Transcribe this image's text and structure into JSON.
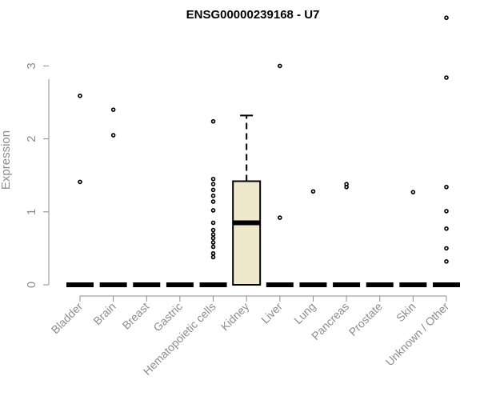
{
  "chart_data": {
    "type": "boxplot",
    "title": "ENSG00000239168 - U7",
    "xlabel": "",
    "ylabel": "Expression",
    "ylim": [
      0,
      3.75
    ],
    "yticks": [
      0,
      1,
      2,
      3
    ],
    "grid": false,
    "categories": [
      "Bladder",
      "Brain",
      "Breast",
      "Gastric",
      "Hematopoietic cells",
      "Kidney",
      "Liver",
      "Lung",
      "Pancreas",
      "Prostate",
      "Skin",
      "Unknown / Other"
    ],
    "box_fill": "#EEE8CD",
    "boxes": [
      {
        "q1": 0,
        "median": 0,
        "q3": 0,
        "whisker_low": 0,
        "whisker_high": 0,
        "outliers": [
          1.41,
          2.59
        ]
      },
      {
        "q1": 0,
        "median": 0,
        "q3": 0,
        "whisker_low": 0,
        "whisker_high": 0,
        "outliers": [
          2.05,
          2.4
        ]
      },
      {
        "q1": 0,
        "median": 0,
        "q3": 0,
        "whisker_low": 0,
        "whisker_high": 0,
        "outliers": []
      },
      {
        "q1": 0,
        "median": 0,
        "q3": 0,
        "whisker_low": 0,
        "whisker_high": 0,
        "outliers": []
      },
      {
        "q1": 0,
        "median": 0,
        "q3": 0,
        "whisker_low": 0,
        "whisker_high": 0,
        "outliers": [
          0.38,
          0.43,
          0.52,
          0.58,
          0.64,
          0.69,
          0.75,
          0.85,
          1.02,
          1.14,
          1.22,
          1.3,
          1.38,
          1.45,
          2.24
        ]
      },
      {
        "q1": 0,
        "median": 0.85,
        "q3": 1.42,
        "whisker_low": 0,
        "whisker_high": 2.32,
        "outliers": []
      },
      {
        "q1": 0,
        "median": 0,
        "q3": 0,
        "whisker_low": 0,
        "whisker_high": 0,
        "outliers": [
          0.92,
          3.0
        ]
      },
      {
        "q1": 0,
        "median": 0,
        "q3": 0,
        "whisker_low": 0,
        "whisker_high": 0,
        "outliers": [
          1.28
        ]
      },
      {
        "q1": 0,
        "median": 0,
        "q3": 0,
        "whisker_low": 0,
        "whisker_high": 0,
        "outliers": [
          1.34,
          1.38
        ]
      },
      {
        "q1": 0,
        "median": 0,
        "q3": 0,
        "whisker_low": 0,
        "whisker_high": 0,
        "outliers": []
      },
      {
        "q1": 0,
        "median": 0,
        "q3": 0,
        "whisker_low": 0,
        "whisker_high": 0,
        "outliers": [
          1.27
        ]
      },
      {
        "q1": 0,
        "median": 0,
        "q3": 0,
        "whisker_low": 0,
        "whisker_high": 0,
        "outliers": [
          0.32,
          0.5,
          0.77,
          1.01,
          1.34,
          2.84,
          3.66
        ]
      }
    ]
  }
}
